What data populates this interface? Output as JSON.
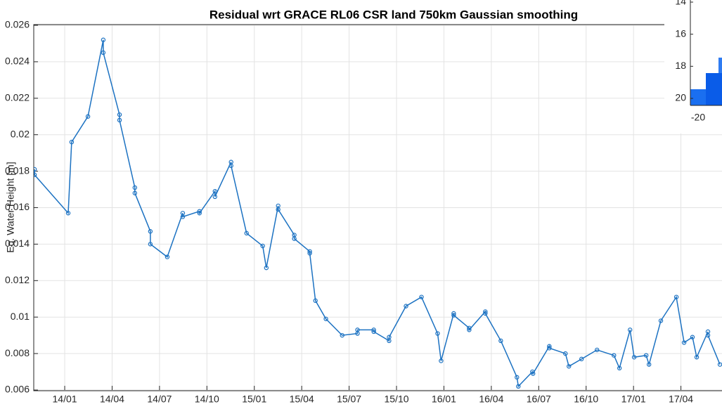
{
  "chart_data": {
    "type": "line",
    "title": "Residual wrt GRACE RL06 CSR land 750km Gaussian smoothing",
    "ylabel": "Eq. Water Height [m]",
    "x": [
      -1.91,
      -1.91,
      0.22,
      0.44,
      1.47,
      2.44,
      2.44,
      3.47,
      3.47,
      4.44,
      4.44,
      5.42,
      5.42,
      6.49,
      7.47,
      7.47,
      8.53,
      8.53,
      9.51,
      9.51,
      10.53,
      10.53,
      11.51,
      12.53,
      12.76,
      13.51,
      13.51,
      14.53,
      14.53,
      15.51,
      15.51,
      15.87,
      16.53,
      17.56,
      18.53,
      18.53,
      19.56,
      19.56,
      20.53,
      20.53,
      21.6,
      22.58,
      23.6,
      23.82,
      24.62,
      24.62,
      25.6,
      25.6,
      26.62,
      26.62,
      27.6,
      28.62,
      28.71,
      29.6,
      29.64,
      30.67,
      30.67,
      31.69,
      31.91,
      32.71,
      33.69,
      34.76,
      35.11,
      35.78,
      36.04,
      36.8,
      36.98,
      37.73,
      38.71,
      39.2,
      39.73,
      40.0,
      40.71,
      40.71,
      41.47
    ],
    "series": [
      {
        "name": "Residual",
        "color": "#1c72c2",
        "values": [
          0.0181,
          0.0178,
          0.0157,
          0.0196,
          0.021,
          0.0252,
          0.0245,
          0.0211,
          0.0208,
          0.0171,
          0.0168,
          0.0147,
          0.014,
          0.0133,
          0.0157,
          0.0155,
          0.0158,
          0.0157,
          0.0169,
          0.0166,
          0.0185,
          0.0183,
          0.0146,
          0.0139,
          0.0127,
          0.0161,
          0.0159,
          0.0145,
          0.0143,
          0.0136,
          0.0135,
          0.0109,
          0.0099,
          0.009,
          0.0091,
          0.0093,
          0.0093,
          0.0092,
          0.0087,
          0.0089,
          0.0106,
          0.0111,
          0.0091,
          0.0076,
          0.0102,
          0.0101,
          0.0094,
          0.0093,
          0.0103,
          0.0102,
          0.0087,
          0.0067,
          0.0062,
          0.007,
          0.0069,
          0.0084,
          0.0083,
          0.008,
          0.0073,
          0.0077,
          0.0082,
          0.0079,
          0.0072,
          0.0093,
          0.0078,
          0.0079,
          0.0074,
          0.0098,
          0.0111,
          0.0086,
          0.0089,
          0.0078,
          0.0092,
          0.009,
          0.0074
        ]
      }
    ],
    "xlim": [
      -1.96,
      41.6
    ],
    "xticks": [
      {
        "value": 0,
        "label": "14/01"
      },
      {
        "value": 3,
        "label": "14/04"
      },
      {
        "value": 6,
        "label": "14/07"
      },
      {
        "value": 9,
        "label": "14/10"
      },
      {
        "value": 12,
        "label": "15/01"
      },
      {
        "value": 15,
        "label": "15/04"
      },
      {
        "value": 18,
        "label": "15/07"
      },
      {
        "value": 21,
        "label": "15/10"
      },
      {
        "value": 24,
        "label": "16/01"
      },
      {
        "value": 27,
        "label": "16/04"
      },
      {
        "value": 30,
        "label": "16/07"
      },
      {
        "value": 33,
        "label": "16/10"
      },
      {
        "value": 36,
        "label": "17/01"
      },
      {
        "value": 39,
        "label": "17/04"
      }
    ],
    "ylim": [
      0.006,
      0.026
    ],
    "yticks": [
      {
        "value": 0.006,
        "label": "0.006"
      },
      {
        "value": 0.008,
        "label": "0.008"
      },
      {
        "value": 0.01,
        "label": "0.01"
      },
      {
        "value": 0.012,
        "label": "0.012"
      },
      {
        "value": 0.014,
        "label": "0.014"
      },
      {
        "value": 0.016,
        "label": "0.016"
      },
      {
        "value": 0.018,
        "label": "0.018"
      },
      {
        "value": 0.02,
        "label": "0.02"
      },
      {
        "value": 0.022,
        "label": "0.022"
      },
      {
        "value": 0.024,
        "label": "0.024"
      },
      {
        "value": 0.026,
        "label": "0.026"
      }
    ],
    "grid": true
  },
  "inset": {
    "yticks": [
      14,
      16,
      18,
      20
    ],
    "ylim": [
      14,
      20
    ],
    "xticks": [
      -20
    ]
  }
}
